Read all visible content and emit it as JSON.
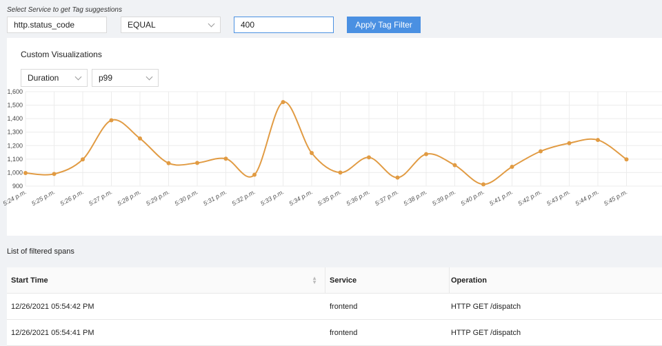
{
  "tag_filter": {
    "hint": "Select Service to get Tag suggestions",
    "key_value": "http.status_code",
    "operator_value": "EQUAL",
    "value_value": "400",
    "apply_label": "Apply Tag Filter",
    "accent_color": "#4a90e2"
  },
  "visualization": {
    "title": "Custom Visualizations",
    "metric_value": "Duration",
    "aggregation_value": "p99"
  },
  "chart_data": {
    "type": "line",
    "x": [
      "5:24 p.m.",
      "5:25 p.m.",
      "5:26 p.m.",
      "5:27 p.m.",
      "5:28 p.m.",
      "5:29 p.m.",
      "5:30 p.m.",
      "5:31 p.m.",
      "5:32 p.m.",
      "5:33 p.m.",
      "5:34 p.m.",
      "5:35 p.m.",
      "5:36 p.m.",
      "5:37 p.m.",
      "5:38 p.m.",
      "5:39 p.m.",
      "5:40 p.m.",
      "5:41 p.m.",
      "5:42 p.m.",
      "5:43 p.m.",
      "5:44 p.m.",
      "5:45 p.m."
    ],
    "series": [
      {
        "values": [
          997,
          990,
          1098,
          1388,
          1253,
          1070,
          1072,
          1103,
          984,
          1523,
          1145,
          1000,
          1113,
          963,
          1137,
          1055,
          913,
          1043,
          1158,
          1218,
          1242,
          1098
        ],
        "color": "#e19b43"
      }
    ],
    "yticks": [
      "900",
      "1,000",
      "1,100",
      "1,200",
      "1,300",
      "1,400",
      "1,500",
      "1,600"
    ],
    "ylim": [
      900,
      1600
    ],
    "grid": true
  },
  "spans": {
    "title": "List of filtered spans",
    "columns": [
      "Start Time",
      "Service",
      "Operation"
    ],
    "rows": [
      {
        "start_time": "12/26/2021 05:54:42 PM",
        "service": "frontend",
        "operation": "HTTP GET /dispatch"
      },
      {
        "start_time": "12/26/2021 05:54:41 PM",
        "service": "frontend",
        "operation": "HTTP GET /dispatch"
      }
    ]
  }
}
